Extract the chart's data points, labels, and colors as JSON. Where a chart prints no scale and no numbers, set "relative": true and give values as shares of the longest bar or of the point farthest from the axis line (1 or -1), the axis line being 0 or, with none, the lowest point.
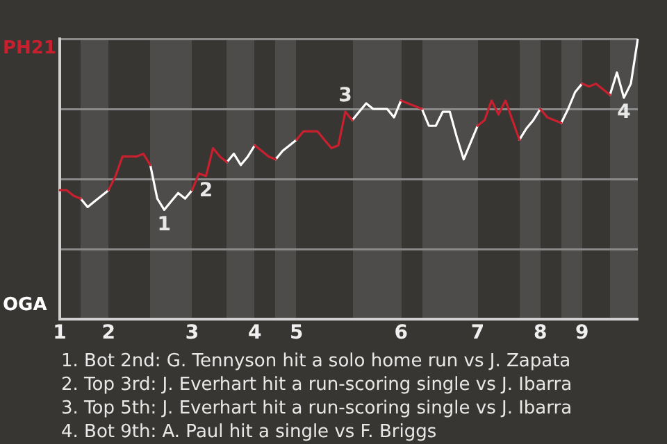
{
  "chart_data": {
    "type": "line",
    "relative": true,
    "marker": "none",
    "line_style": "solid",
    "grid": "y",
    "legend": "left",
    "categories": [
      "1",
      null,
      null,
      null,
      null,
      null,
      null,
      "2",
      null,
      null,
      null,
      null,
      null,
      null,
      null,
      null,
      null,
      null,
      null,
      "3",
      null,
      null,
      null,
      null,
      null,
      null,
      null,
      null,
      "4",
      null,
      null,
      null,
      null,
      null,
      "5",
      null,
      null,
      null,
      null,
      null,
      null,
      null,
      null,
      null,
      null,
      null,
      null,
      null,
      null,
      "6",
      null,
      null,
      null,
      null,
      null,
      null,
      null,
      null,
      null,
      null,
      "7",
      null,
      null,
      null,
      null,
      null,
      null,
      null,
      null,
      "8",
      null,
      null,
      null,
      null,
      null,
      "9",
      null,
      null,
      null,
      null,
      null,
      null,
      null,
      null
    ],
    "series": [
      {
        "name": "PH21",
        "color": "#c8202e",
        "values": [
          0.46,
          0.46,
          0.44,
          0.43,
          null,
          null,
          null,
          0.46,
          0.51,
          0.58,
          0.58,
          0.58,
          0.59,
          0.55,
          null,
          null,
          null,
          null,
          null,
          0.46,
          0.52,
          0.51,
          0.61,
          0.58,
          0.56,
          null,
          null,
          null,
          0.62,
          0.6,
          0.58,
          0.57,
          null,
          null,
          0.64,
          0.67,
          0.67,
          0.67,
          0.64,
          0.61,
          0.62,
          0.74,
          0.71,
          null,
          null,
          null,
          null,
          null,
          null,
          0.78,
          0.77,
          0.76,
          0.75,
          null,
          null,
          null,
          null,
          null,
          null,
          null,
          0.69,
          0.71,
          0.78,
          0.73,
          0.78,
          0.71,
          0.64,
          null,
          null,
          0.75,
          0.72,
          0.71,
          0.7,
          null,
          null,
          0.84,
          0.83,
          0.84,
          0.82,
          0.8,
          null,
          null,
          null,
          null
        ]
      },
      {
        "name": "OGA",
        "color": "#ffffff",
        "values": [
          null,
          null,
          null,
          0.43,
          0.4,
          0.42,
          0.44,
          0.46,
          null,
          null,
          null,
          null,
          null,
          0.55,
          0.43,
          0.39,
          0.42,
          0.45,
          0.43,
          0.46,
          null,
          null,
          null,
          null,
          0.56,
          0.59,
          0.55,
          0.58,
          0.62,
          null,
          null,
          0.57,
          0.6,
          0.62,
          0.64,
          null,
          null,
          null,
          null,
          null,
          null,
          null,
          0.71,
          0.74,
          0.77,
          0.75,
          0.75,
          0.75,
          0.72,
          0.78,
          null,
          null,
          0.75,
          0.69,
          0.69,
          0.74,
          0.74,
          0.65,
          0.57,
          0.63,
          0.69,
          null,
          null,
          null,
          null,
          null,
          0.64,
          0.68,
          0.71,
          0.75,
          null,
          null,
          0.7,
          0.75,
          0.81,
          0.84,
          null,
          null,
          null,
          0.8,
          0.88,
          0.79,
          0.84,
          1.0
        ]
      }
    ],
    "annotations": [
      {
        "text": "1",
        "y": 0.39
      },
      {
        "text": "2",
        "y": 0.51
      },
      {
        "text": "3",
        "y": 0.74
      },
      {
        "text": "4",
        "y": 0.79
      },
      "1. Bot 2nd: G. Tennyson hit a solo home run vs J. Zapata",
      "2. Top 3rd: J. Everhart hit a run-scoring single vs J. Ibarra",
      "3. Top 5th: J. Everhart hit a run-scoring single vs J. Ibarra",
      "4. Bot 9th: A. Paul hit a single vs F. Briggs"
    ]
  }
}
